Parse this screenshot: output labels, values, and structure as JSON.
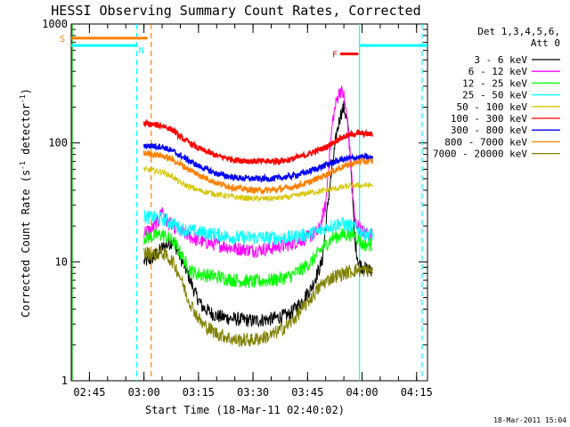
{
  "chart_data": {
    "type": "line",
    "title": "HESSI Observing Summary Count Rates, Corrected",
    "xlabel": "Start Time (18-Mar-11 02:40:02)",
    "ylabel": "Corrected Count Rate (s⁻¹ detector⁻¹)",
    "ylabel_parts": {
      "main": "Corrected Count Rate (s",
      "exp1": "-1",
      "mid": " detector",
      "exp2": "-1",
      "end": ")"
    },
    "yscale": "log",
    "ylim": [
      1,
      1000
    ],
    "xlim_minutes": [
      0,
      98
    ],
    "x_ticks": [
      {
        "label": "02:45",
        "min": 5
      },
      {
        "label": "03:00",
        "min": 20
      },
      {
        "label": "03:15",
        "min": 35
      },
      {
        "label": "03:30",
        "min": 50
      },
      {
        "label": "03:45",
        "min": 65
      },
      {
        "label": "04:00",
        "min": 80
      },
      {
        "label": "04:15",
        "min": 95
      }
    ],
    "y_ticks": [
      {
        "label": "1",
        "v": 1
      },
      {
        "label": "10",
        "v": 10
      },
      {
        "label": "100",
        "v": 100
      },
      {
        "label": "1000",
        "v": 1000
      }
    ],
    "legend_header": [
      "Det 1,3,4,5,6,",
      "Att 0"
    ],
    "legend_placement": "right",
    "series": [
      {
        "name": "3 - 6 keV",
        "color": "#000000",
        "points": [
          [
            20,
            10
          ],
          [
            22,
            10.5
          ],
          [
            25,
            13
          ],
          [
            28,
            15
          ],
          [
            30,
            11
          ],
          [
            32,
            8
          ],
          [
            34,
            5.5
          ],
          [
            36,
            4.2
          ],
          [
            38,
            3.8
          ],
          [
            40,
            3.5
          ],
          [
            45,
            3.3
          ],
          [
            50,
            3.2
          ],
          [
            55,
            3.3
          ],
          [
            60,
            3.6
          ],
          [
            63,
            4.5
          ],
          [
            66,
            6
          ],
          [
            69,
            10
          ],
          [
            71,
            40
          ],
          [
            73,
            120
          ],
          [
            74,
            170
          ],
          [
            75,
            200
          ],
          [
            76,
            150
          ],
          [
            77,
            60
          ],
          [
            78,
            15
          ],
          [
            79,
            10
          ],
          [
            80,
            9
          ],
          [
            82,
            8.5
          ],
          [
            83,
            8
          ]
        ]
      },
      {
        "name": "6 - 12 keV",
        "color": "#ff00ff",
        "points": [
          [
            20,
            18
          ],
          [
            22,
            18.5
          ],
          [
            24,
            22
          ],
          [
            25,
            28
          ],
          [
            26,
            22
          ],
          [
            28,
            20
          ],
          [
            30,
            18
          ],
          [
            35,
            15
          ],
          [
            40,
            14
          ],
          [
            45,
            13
          ],
          [
            50,
            12.5
          ],
          [
            55,
            13
          ],
          [
            60,
            14
          ],
          [
            65,
            16
          ],
          [
            68,
            18
          ],
          [
            70,
            30
          ],
          [
            71,
            80
          ],
          [
            72,
            160
          ],
          [
            73,
            230
          ],
          [
            74,
            280
          ],
          [
            75,
            250
          ],
          [
            76,
            150
          ],
          [
            77,
            60
          ],
          [
            78,
            22
          ],
          [
            80,
            18
          ],
          [
            82,
            17
          ],
          [
            83,
            17
          ]
        ]
      },
      {
        "name": "12 - 25 keV",
        "color": "#00ff00",
        "points": [
          [
            20,
            16
          ],
          [
            23,
            16.5
          ],
          [
            25,
            17
          ],
          [
            28,
            15
          ],
          [
            30,
            12
          ],
          [
            32,
            9
          ],
          [
            34,
            8
          ],
          [
            40,
            7.5
          ],
          [
            45,
            7
          ],
          [
            50,
            6.8
          ],
          [
            55,
            7
          ],
          [
            60,
            7.5
          ],
          [
            63,
            8.5
          ],
          [
            66,
            10
          ],
          [
            69,
            13
          ],
          [
            72,
            16
          ],
          [
            75,
            17
          ],
          [
            78,
            17
          ],
          [
            80,
            14
          ],
          [
            82,
            14
          ],
          [
            83,
            14
          ]
        ]
      },
      {
        "name": "25 - 50 keV",
        "color": "#00ffff",
        "points": [
          [
            20,
            24
          ],
          [
            23,
            23.5
          ],
          [
            25,
            23
          ],
          [
            28,
            21
          ],
          [
            30,
            19
          ],
          [
            34,
            18
          ],
          [
            40,
            17
          ],
          [
            45,
            16
          ],
          [
            50,
            16
          ],
          [
            55,
            16
          ],
          [
            60,
            16
          ],
          [
            65,
            17
          ],
          [
            68,
            18
          ],
          [
            71,
            20
          ],
          [
            74,
            21
          ],
          [
            77,
            20
          ],
          [
            80,
            18
          ],
          [
            82,
            17
          ],
          [
            83,
            17
          ]
        ]
      },
      {
        "name": "50 - 100 keV",
        "color": "#d4c400",
        "points": [
          [
            20,
            60
          ],
          [
            23,
            58
          ],
          [
            25,
            57
          ],
          [
            28,
            52
          ],
          [
            30,
            46
          ],
          [
            35,
            40
          ],
          [
            40,
            37
          ],
          [
            45,
            35
          ],
          [
            50,
            34
          ],
          [
            55,
            34
          ],
          [
            60,
            35
          ],
          [
            65,
            38
          ],
          [
            70,
            40
          ],
          [
            74,
            42
          ],
          [
            78,
            44
          ],
          [
            80,
            44
          ],
          [
            83,
            44
          ]
        ]
      },
      {
        "name": "100 - 300 keV",
        "color": "#ff0000",
        "points": [
          [
            20,
            145
          ],
          [
            23,
            142
          ],
          [
            25,
            140
          ],
          [
            28,
            128
          ],
          [
            30,
            112
          ],
          [
            35,
            90
          ],
          [
            40,
            78
          ],
          [
            45,
            72
          ],
          [
            50,
            70
          ],
          [
            55,
            70
          ],
          [
            60,
            72
          ],
          [
            65,
            80
          ],
          [
            70,
            92
          ],
          [
            74,
            110
          ],
          [
            78,
            120
          ],
          [
            80,
            120
          ],
          [
            83,
            118
          ]
        ]
      },
      {
        "name": "300 - 800 keV",
        "color": "#0000ff",
        "points": [
          [
            20,
            95
          ],
          [
            23,
            94
          ],
          [
            25,
            93
          ],
          [
            28,
            85
          ],
          [
            30,
            78
          ],
          [
            35,
            64
          ],
          [
            40,
            55
          ],
          [
            45,
            51
          ],
          [
            50,
            50
          ],
          [
            55,
            50
          ],
          [
            60,
            52
          ],
          [
            65,
            57
          ],
          [
            70,
            65
          ],
          [
            74,
            72
          ],
          [
            78,
            75
          ],
          [
            80,
            76
          ],
          [
            83,
            75
          ]
        ]
      },
      {
        "name": "800 - 7000 keV",
        "color": "#ff8000",
        "points": [
          [
            20,
            82
          ],
          [
            23,
            80
          ],
          [
            25,
            78
          ],
          [
            28,
            72
          ],
          [
            30,
            66
          ],
          [
            35,
            54
          ],
          [
            40,
            46
          ],
          [
            45,
            42
          ],
          [
            50,
            40
          ],
          [
            55,
            40
          ],
          [
            60,
            42
          ],
          [
            65,
            46
          ],
          [
            70,
            54
          ],
          [
            74,
            62
          ],
          [
            78,
            68
          ],
          [
            80,
            70
          ],
          [
            83,
            70
          ]
        ]
      },
      {
        "name": "7000 - 20000 keV",
        "color": "#808000",
        "points": [
          [
            20,
            12
          ],
          [
            23,
            11.5
          ],
          [
            25,
            12
          ],
          [
            28,
            10
          ],
          [
            30,
            7.5
          ],
          [
            32,
            5
          ],
          [
            34,
            3.8
          ],
          [
            36,
            3
          ],
          [
            40,
            2.5
          ],
          [
            45,
            2.2
          ],
          [
            50,
            2.2
          ],
          [
            55,
            2.4
          ],
          [
            60,
            3
          ],
          [
            63,
            3.8
          ],
          [
            66,
            5
          ],
          [
            69,
            6.5
          ],
          [
            72,
            7.5
          ],
          [
            75,
            8
          ],
          [
            78,
            8.5
          ],
          [
            80,
            8.5
          ],
          [
            83,
            8.5
          ]
        ]
      }
    ],
    "flags": [
      {
        "label": "S",
        "color": "#ff8000",
        "level": 760,
        "x_start": 0,
        "x_end": 21
      },
      {
        "label": "N",
        "color": "#00ffff",
        "level": 660,
        "x_start": 0,
        "x_end": 18
      },
      {
        "label": "F",
        "color": "#ff0000",
        "level": 560,
        "x_start": 74,
        "x_end": 79
      }
    ],
    "flag_ending": {
      "color": "#00ffff",
      "level": 660,
      "x_start": 79.3,
      "x_end": 98
    },
    "vlines": [
      {
        "color": "#00ffff",
        "x": 18,
        "style": "dash"
      },
      {
        "color": "#ff8000",
        "x": 22,
        "style": "dash"
      },
      {
        "color": "#00ffff",
        "x": 79.3,
        "style": "solid"
      },
      {
        "color": "#00ffff",
        "x": 96.5,
        "style": "dash"
      }
    ]
  },
  "footer": {
    "timestamp": "18-Mar-2011 15:04"
  }
}
